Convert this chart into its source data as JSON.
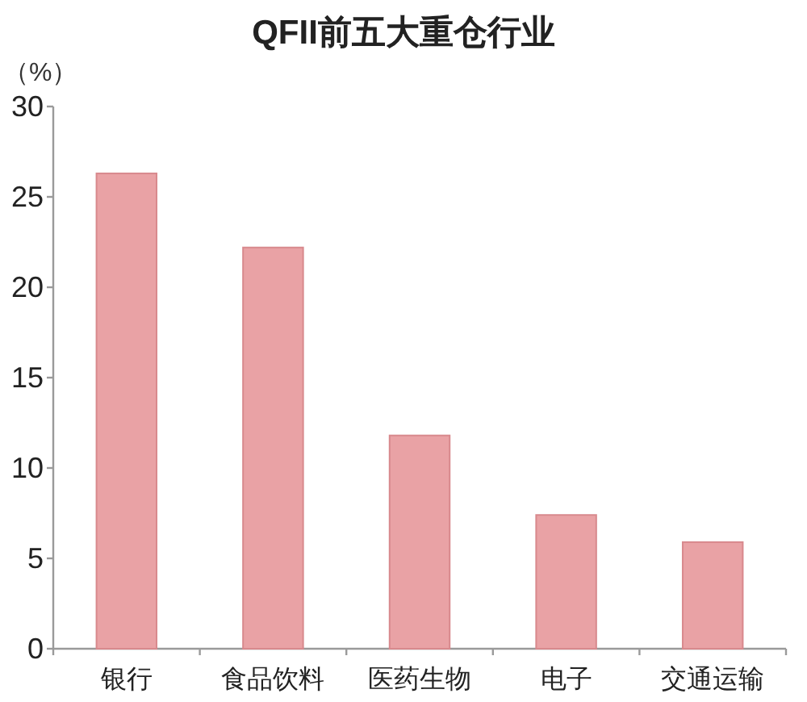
{
  "chart_data": {
    "type": "bar",
    "title": "QFII前五大重仓行业",
    "ylabel": "（%）",
    "categories": [
      "银行",
      "食品饮料",
      "医药生物",
      "电子",
      "交通运输"
    ],
    "values": [
      26.3,
      22.2,
      11.8,
      7.4,
      5.9
    ],
    "color": "#e9a2a5",
    "ylim": [
      0,
      30
    ],
    "yticks": [
      0,
      5,
      10,
      15,
      20,
      25,
      30
    ]
  }
}
